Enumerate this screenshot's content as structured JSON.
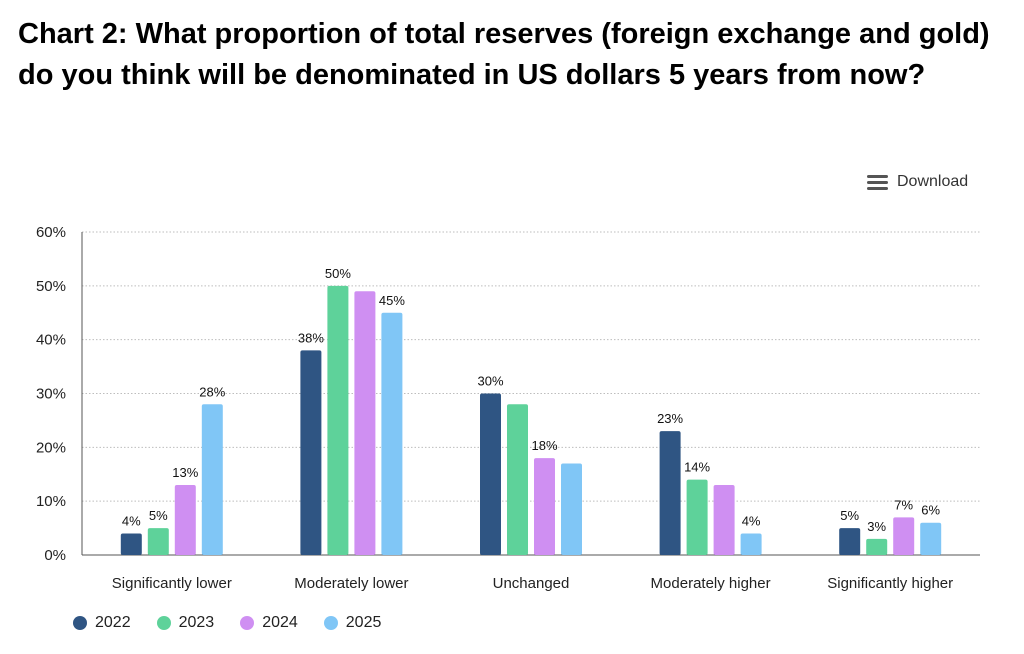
{
  "title": "Chart 2: What proportion of total reserves (foreign exchange and gold) do you think will be denominated in US dollars 5 years from now?",
  "toolbar": {
    "download_label": "Download",
    "download_icon": "hamburger-menu-icon"
  },
  "chart_data": {
    "type": "bar",
    "title": "Chart 2: What proportion of total reserves (foreign exchange and gold) do you think will be denominated in US dollars 5 years from now?",
    "categories": [
      "Significantly lower",
      "Moderately lower",
      "Unchanged",
      "Moderately higher",
      "Significantly higher"
    ],
    "series": [
      {
        "name": "2022",
        "color": "#2f5583",
        "values": [
          4,
          38,
          30,
          23,
          5
        ],
        "labels": [
          "4%",
          "38%",
          "30%",
          "23%",
          "5%"
        ]
      },
      {
        "name": "2023",
        "color": "#5ed29a",
        "values": [
          5,
          50,
          28,
          14,
          3
        ],
        "labels": [
          "5%",
          "50%",
          "",
          "14%",
          "3%"
        ]
      },
      {
        "name": "2024",
        "color": "#cf8ff2",
        "values": [
          13,
          49,
          18,
          13,
          7
        ],
        "labels": [
          "13%",
          "",
          "18%",
          "",
          "7%"
        ]
      },
      {
        "name": "2025",
        "color": "#80c6f6",
        "values": [
          28,
          45,
          17,
          4,
          6
        ],
        "labels": [
          "28%",
          "45%",
          "",
          "4%",
          "6%"
        ]
      }
    ],
    "ylim": [
      0,
      60
    ],
    "yticks": [
      0,
      10,
      20,
      30,
      40,
      50,
      60
    ],
    "ytick_labels": [
      "0%",
      "10%",
      "20%",
      "30%",
      "40%",
      "50%",
      "60%"
    ],
    "grid": true,
    "legend_position": "bottom-left"
  }
}
